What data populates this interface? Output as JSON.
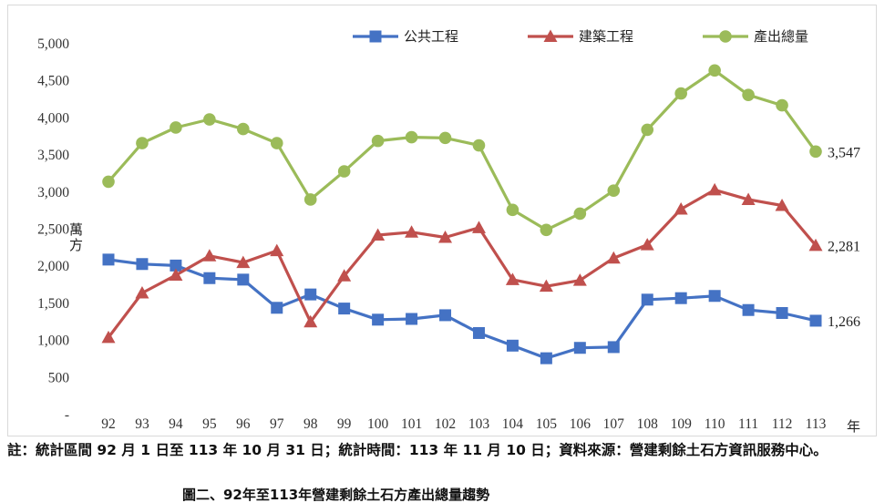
{
  "chart_data": {
    "type": "line",
    "title": "",
    "xlabel": "年",
    "ylabel": "萬方",
    "ylim": [
      0,
      5000
    ],
    "yticks": [
      "-",
      "500",
      "1,000",
      "1,500",
      "2,000",
      "2,500",
      "3,000",
      "3,500",
      "4,000",
      "4,500",
      "5,000"
    ],
    "categories": [
      "92",
      "93",
      "94",
      "95",
      "96",
      "97",
      "98",
      "99",
      "100",
      "101",
      "102",
      "103",
      "104",
      "105",
      "106",
      "107",
      "108",
      "109",
      "110",
      "111",
      "112",
      "113"
    ],
    "legend_position": "top",
    "grid": false,
    "series": [
      {
        "name": "公共工程",
        "color": "#4472C4",
        "marker": "square",
        "values": [
          2090,
          2030,
          2010,
          1840,
          1820,
          1440,
          1620,
          1430,
          1280,
          1290,
          1340,
          1100,
          930,
          760,
          900,
          910,
          1550,
          1570,
          1600,
          1410,
          1370,
          1266
        ],
        "end_label": "1,266"
      },
      {
        "name": "建築工程",
        "color": "#C0504D",
        "marker": "triangle",
        "values": [
          1040,
          1640,
          1880,
          2140,
          2050,
          2210,
          1250,
          1870,
          2420,
          2460,
          2390,
          2520,
          1820,
          1730,
          1810,
          2110,
          2290,
          2770,
          3030,
          2900,
          2820,
          2281
        ],
        "end_label": "2,281"
      },
      {
        "name": "產出總量",
        "color": "#9BBB59",
        "marker": "circle",
        "values": [
          3140,
          3660,
          3870,
          3980,
          3850,
          3660,
          2900,
          3280,
          3690,
          3740,
          3730,
          3630,
          2760,
          2490,
          2710,
          3020,
          3840,
          4330,
          4640,
          4310,
          4170,
          3547
        ],
        "end_label": "3,547"
      }
    ]
  },
  "note": "註：統計區間 92 月 1 日至 113 年 10 月 31 日；統計時間：113 年 11 月 10 日；資料來源：營建剩餘土石方資訊服務中心。",
  "caption": "圖二、92年至113年營建剩餘土石方產出總量趨勢"
}
